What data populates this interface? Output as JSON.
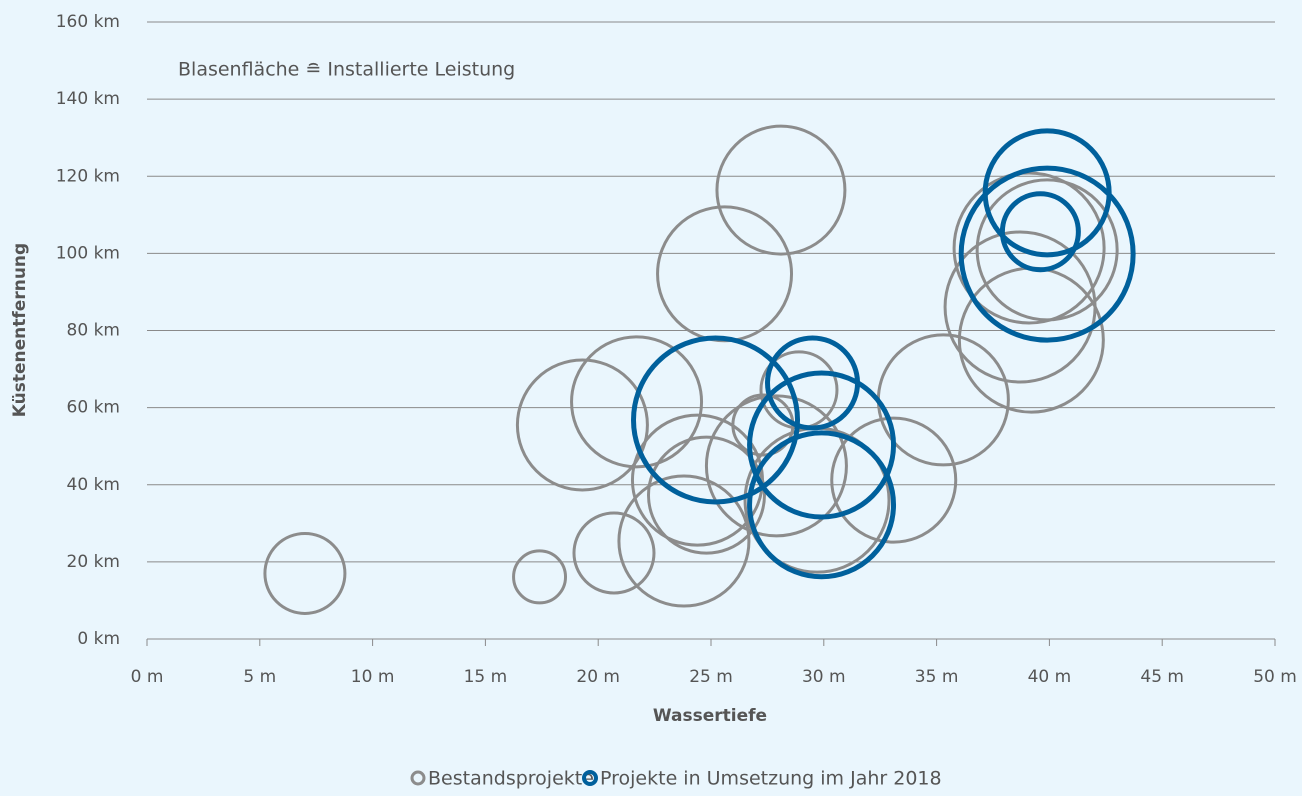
{
  "chart_data": {
    "type": "bubble",
    "annotation": "Blasenfläche ≘ Installierte Leistung",
    "x_label": "Wassertiefe",
    "y_label": "Küstenentfernung",
    "xlim": [
      0,
      50
    ],
    "xticks": [
      {
        "value": 0,
        "label": "0 m"
      },
      {
        "value": 5,
        "label": "5 m"
      },
      {
        "value": 10,
        "label": "10 m"
      },
      {
        "value": 15,
        "label": "15 m"
      },
      {
        "value": 20,
        "label": "20 m"
      },
      {
        "value": 25,
        "label": "25 m"
      },
      {
        "value": 30,
        "label": "30 m"
      },
      {
        "value": 35,
        "label": "35 m"
      },
      {
        "value": 40,
        "label": "40 m"
      },
      {
        "value": 45,
        "label": "45 m"
      },
      {
        "value": 50,
        "label": "50 m"
      }
    ],
    "ylim": [
      0,
      160
    ],
    "yticks": [
      {
        "value": 0,
        "label": "0 km"
      },
      {
        "value": 20,
        "label": "20 km"
      },
      {
        "value": 40,
        "label": "40 km"
      },
      {
        "value": 60,
        "label": "60 km"
      },
      {
        "value": 80,
        "label": "80 km"
      },
      {
        "value": 100,
        "label": "100 km"
      },
      {
        "value": 120,
        "label": "120 km"
      },
      {
        "value": 140,
        "label": "140 km"
      },
      {
        "value": 160,
        "label": "160 km"
      }
    ],
    "grid": true,
    "legend": "bottom",
    "series": [
      {
        "name": "Bestandsprojekte",
        "color": "#8c8c8c",
        "x": [
          7.0,
          17.4,
          20.7,
          23.8,
          19.3,
          21.7,
          24.4,
          24.8,
          25.6,
          28.1,
          27.9,
          27.3,
          28.9,
          29.7,
          33.1,
          35.3,
          38.7,
          39.2,
          39.1,
          39.9
        ],
        "values": [
          17,
          16.1,
          22.3,
          25.4,
          55.5,
          61.5,
          41.2,
          37.3,
          94.7,
          116.4,
          44.9,
          55.5,
          64.6,
          36,
          41.2,
          62,
          86.1,
          77.5,
          101.4,
          100.9
        ],
        "sizes": [
          256,
          108,
          256,
          676,
          676,
          676,
          676,
          538,
          718,
          655,
          784,
          144,
          231,
          829,
          615,
          676,
          900,
          829,
          900,
          784
        ]
      },
      {
        "name": "Projekte in Umsetzung im Jahr 2018",
        "color": "#00609c",
        "x": [
          25.2,
          29.5,
          29.9,
          29.9,
          39.9,
          39.9,
          39.6
        ],
        "values": [
          56.8,
          66.4,
          50.3,
          34.8,
          115.7,
          99.8,
          105.6
        ],
        "sizes": [
          1076,
          324,
          829,
          829,
          615,
          1183,
          231
        ]
      }
    ]
  }
}
